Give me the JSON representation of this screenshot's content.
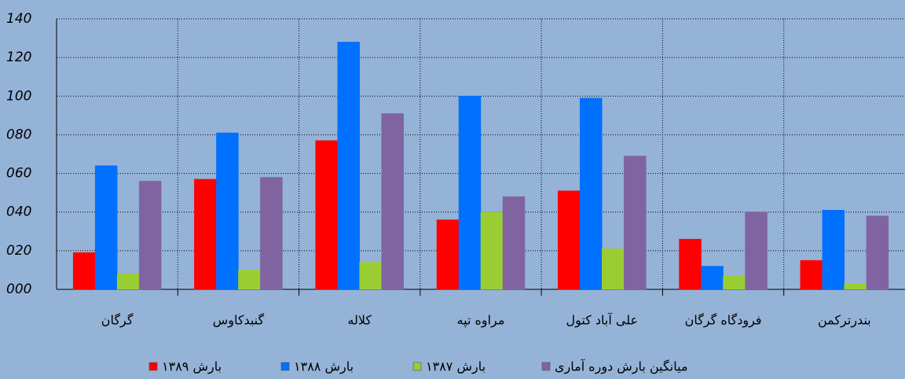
{
  "chart_data": {
    "type": "bar",
    "categories": [
      "گرگان",
      "گنبدکاوس",
      "کلاله",
      "مراوه تپه",
      "علی آباد کتول",
      "فرودگاه گرگان",
      "بندرترکمن"
    ],
    "series": [
      {
        "name": "بارش ۱۳۸۹",
        "color": "#ff0000",
        "values": [
          19,
          57,
          77,
          36,
          51,
          26,
          15
        ]
      },
      {
        "name": "بارش ۱۳۸۸",
        "color": "#0070ff",
        "values": [
          64,
          81,
          128,
          100,
          99,
          12,
          41
        ]
      },
      {
        "name": "بارش ۱۳۸۷",
        "color": "#9acd32",
        "values": [
          8,
          10,
          14,
          40,
          21,
          7,
          3
        ]
      },
      {
        "name": "میانگین بارش دوره آماری",
        "color": "#8064a2",
        "values": [
          56,
          58,
          91,
          48,
          69,
          40,
          38
        ]
      }
    ],
    "ylim": [
      0,
      140
    ],
    "yticks": [
      {
        "value": 0,
        "label": "000"
      },
      {
        "value": 20,
        "label": "020"
      },
      {
        "value": 40,
        "label": "040"
      },
      {
        "value": 60,
        "label": "060"
      },
      {
        "value": 80,
        "label": "080"
      },
      100,
      120,
      140
    ],
    "grid": true
  }
}
